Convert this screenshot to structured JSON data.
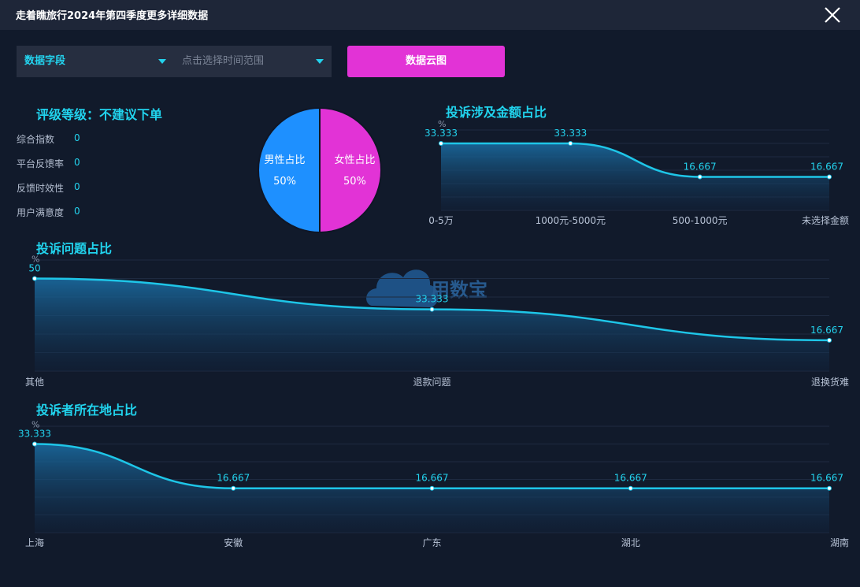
{
  "window": {
    "title": "走着瞧旅行2024年第四季度更多详细数据"
  },
  "filters": {
    "field_select": "数据字段",
    "time_range_placeholder": "点击选择时间范围",
    "cloud_button": "数据云图"
  },
  "rating": {
    "title": "评级等级：不建议下单",
    "items": [
      {
        "label": "综合指数",
        "value": "0"
      },
      {
        "label": "平台反馈率",
        "value": "0"
      },
      {
        "label": "反馈时效性",
        "value": "0"
      },
      {
        "label": "用户满意度",
        "value": "0"
      }
    ]
  },
  "colors": {
    "accent": "#23d3ee",
    "male": "#1e90ff",
    "female": "#e233d6",
    "button": "#e233d6",
    "background": "#111a2b"
  },
  "watermark": {
    "text": "用数宝"
  },
  "chart_data": [
    {
      "id": "gender",
      "type": "pie",
      "labels": [
        "男性占比",
        "女性占比"
      ],
      "values": [
        50,
        50
      ],
      "value_labels": [
        "50%",
        "50%"
      ]
    },
    {
      "id": "amount",
      "type": "area",
      "title": "投诉涉及金额占比",
      "unit": "%",
      "categories": [
        "0-5万",
        "1000元-5000元",
        "500-1000元",
        "未选择金额"
      ],
      "values": [
        33.333,
        33.333,
        16.667,
        16.667
      ],
      "ylim": [
        0,
        40
      ]
    },
    {
      "id": "issue",
      "type": "area",
      "title": "投诉问题占比",
      "unit": "%",
      "categories": [
        "其他",
        "退款问题",
        "退换货难"
      ],
      "values": [
        50,
        33.333,
        16.667
      ],
      "ylim": [
        0,
        60
      ]
    },
    {
      "id": "location",
      "type": "area",
      "title": "投诉者所在地占比",
      "unit": "%",
      "categories": [
        "上海",
        "安徽",
        "广东",
        "湖北",
        "湖南"
      ],
      "values": [
        33.333,
        16.667,
        16.667,
        16.667,
        16.667
      ],
      "ylim": [
        0,
        40
      ]
    }
  ]
}
